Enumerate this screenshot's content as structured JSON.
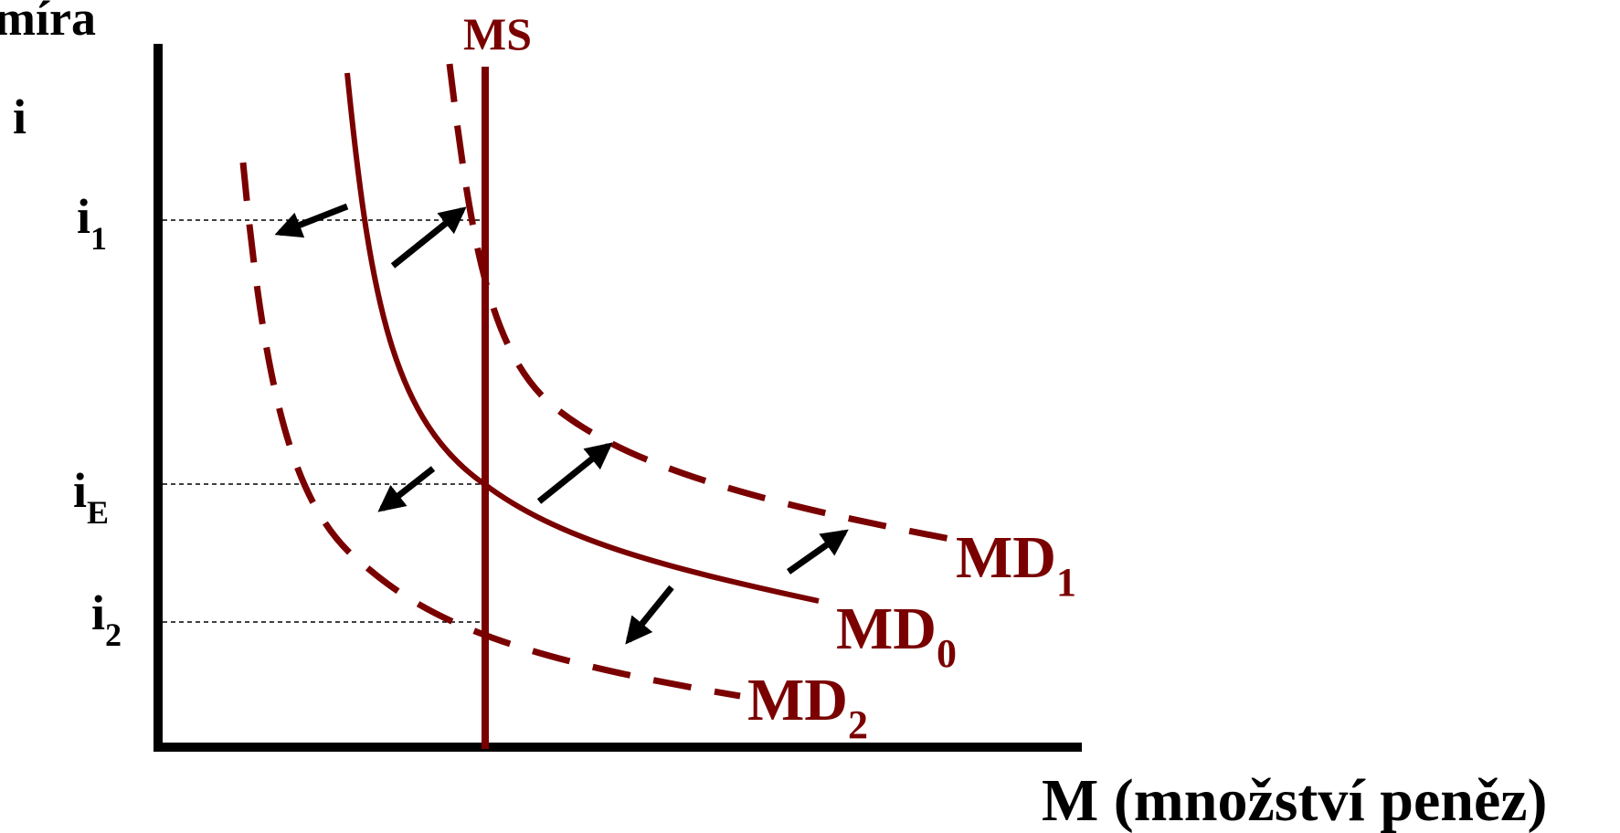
{
  "labels": {
    "y_axis_line1": "míra",
    "y_axis_line2": "i",
    "x_axis": "M (množství peněz)",
    "tick_i1_main": "i",
    "tick_i1_sub": "1",
    "tick_iE_main": "i",
    "tick_iE_sub": "E",
    "tick_i2_main": "i",
    "tick_i2_sub": "2",
    "ms": "MS",
    "md0_main": "MD",
    "md0_sub": "0",
    "md1_main": "MD",
    "md1_sub": "1",
    "md2_main": "MD",
    "md2_sub": "2"
  },
  "colors": {
    "axis": "#000000",
    "curve": "#7a0000",
    "arrow": "#000000",
    "guide": "#000000",
    "text_black": "#000000",
    "text_curve": "#7a0000"
  },
  "curves": [
    {
      "name": "MS",
      "style": "solid"
    },
    {
      "name": "MD0",
      "style": "solid"
    },
    {
      "name": "MD1",
      "style": "dashed"
    },
    {
      "name": "MD2",
      "style": "dashed"
    }
  ]
}
